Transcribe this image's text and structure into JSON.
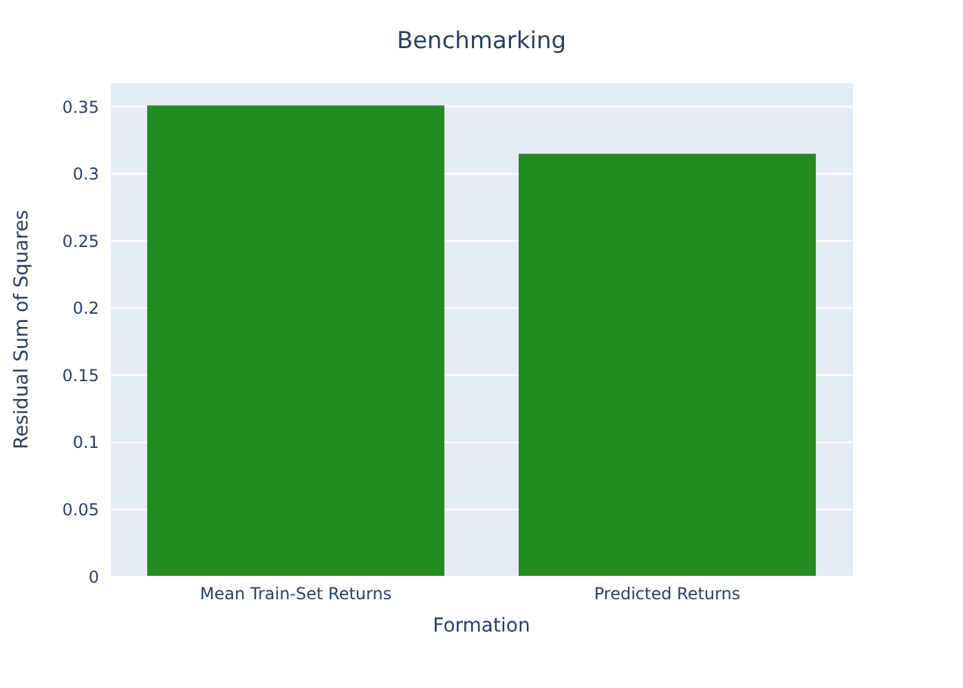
{
  "chart_data": {
    "type": "bar",
    "title": "Benchmarking",
    "xlabel": "Formation",
    "ylabel": "Residual Sum of Squares",
    "categories": [
      "Mean Train-Set Returns",
      "Predicted Returns"
    ],
    "values": [
      0.351,
      0.315
    ],
    "color": "#228b22",
    "ylim": [
      0,
      0.368
    ],
    "yticks": [
      0,
      0.05,
      0.1,
      0.15,
      0.2,
      0.25,
      0.3,
      0.35
    ],
    "grid": "y"
  }
}
